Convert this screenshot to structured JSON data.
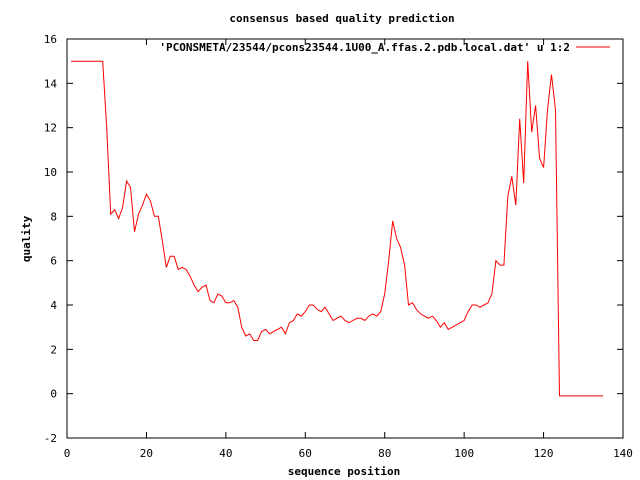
{
  "chart_data": {
    "type": "line",
    "title": "consensus based quality prediction",
    "xlabel": "sequence position",
    "ylabel": "quality",
    "xlim": [
      0,
      140
    ],
    "ylim": [
      -2,
      16
    ],
    "xticks": [
      0,
      20,
      40,
      60,
      80,
      100,
      120,
      140
    ],
    "yticks": [
      -2,
      0,
      2,
      4,
      6,
      8,
      10,
      12,
      14,
      16
    ],
    "grid": false,
    "legend": "top-right",
    "series": [
      {
        "name": "'PCONSMETA/23544/pcons23544.1U00_A.ffas.2.pdb.local.dat' u 1:2",
        "color": "#ff0000",
        "x": [
          1,
          2,
          3,
          4,
          5,
          6,
          7,
          8,
          9,
          10,
          11,
          12,
          13,
          14,
          15,
          16,
          17,
          18,
          19,
          20,
          21,
          22,
          23,
          24,
          25,
          26,
          27,
          28,
          29,
          30,
          31,
          32,
          33,
          34,
          35,
          36,
          37,
          38,
          39,
          40,
          41,
          42,
          43,
          44,
          45,
          46,
          47,
          48,
          49,
          50,
          51,
          52,
          53,
          54,
          55,
          56,
          57,
          58,
          59,
          60,
          61,
          62,
          63,
          64,
          65,
          66,
          67,
          68,
          69,
          70,
          71,
          72,
          73,
          74,
          75,
          76,
          77,
          78,
          79,
          80,
          81,
          82,
          83,
          84,
          85,
          86,
          87,
          88,
          89,
          90,
          91,
          92,
          93,
          94,
          95,
          96,
          97,
          98,
          99,
          100,
          101,
          102,
          103,
          104,
          105,
          106,
          107,
          108,
          109,
          110,
          111,
          112,
          113,
          114,
          115,
          116,
          117,
          118,
          119,
          120,
          121,
          122,
          123,
          124,
          125,
          126,
          127,
          128,
          129,
          130,
          131,
          132,
          133,
          134,
          135
        ],
        "y": [
          15,
          15,
          15,
          15,
          15,
          15,
          15,
          15,
          15,
          12.0,
          8.1,
          8.3,
          7.9,
          8.4,
          9.6,
          9.3,
          7.3,
          8.1,
          8.5,
          9.0,
          8.7,
          8.0,
          8.0,
          6.9,
          5.7,
          6.2,
          6.2,
          5.6,
          5.7,
          5.6,
          5.3,
          4.9,
          4.6,
          4.8,
          4.9,
          4.2,
          4.1,
          4.5,
          4.4,
          4.1,
          4.1,
          4.2,
          3.9,
          3.0,
          2.6,
          2.7,
          2.4,
          2.4,
          2.8,
          2.9,
          2.7,
          2.8,
          2.9,
          3.0,
          2.7,
          3.2,
          3.3,
          3.6,
          3.5,
          3.7,
          4.0,
          4.0,
          3.8,
          3.7,
          3.9,
          3.6,
          3.3,
          3.4,
          3.5,
          3.3,
          3.2,
          3.3,
          3.4,
          3.4,
          3.3,
          3.5,
          3.6,
          3.5,
          3.7,
          4.5,
          6.0,
          7.8,
          7.0,
          6.6,
          5.8,
          4.0,
          4.1,
          3.8,
          3.6,
          3.5,
          3.4,
          3.5,
          3.3,
          3.0,
          3.2,
          2.9,
          3.0,
          3.1,
          3.2,
          3.3,
          3.7,
          4.0,
          4.0,
          3.9,
          4.0,
          4.1,
          4.5,
          6.0,
          5.8,
          5.8,
          8.9,
          9.8,
          8.5,
          12.4,
          9.5,
          15.0,
          11.8,
          13.0,
          10.6,
          10.2,
          12.8,
          14.4,
          12.8,
          -0.1,
          -0.1,
          -0.1,
          -0.1,
          -0.1,
          -0.1,
          -0.1,
          -0.1,
          -0.1,
          -0.1,
          -0.1,
          -0.1
        ]
      }
    ]
  }
}
